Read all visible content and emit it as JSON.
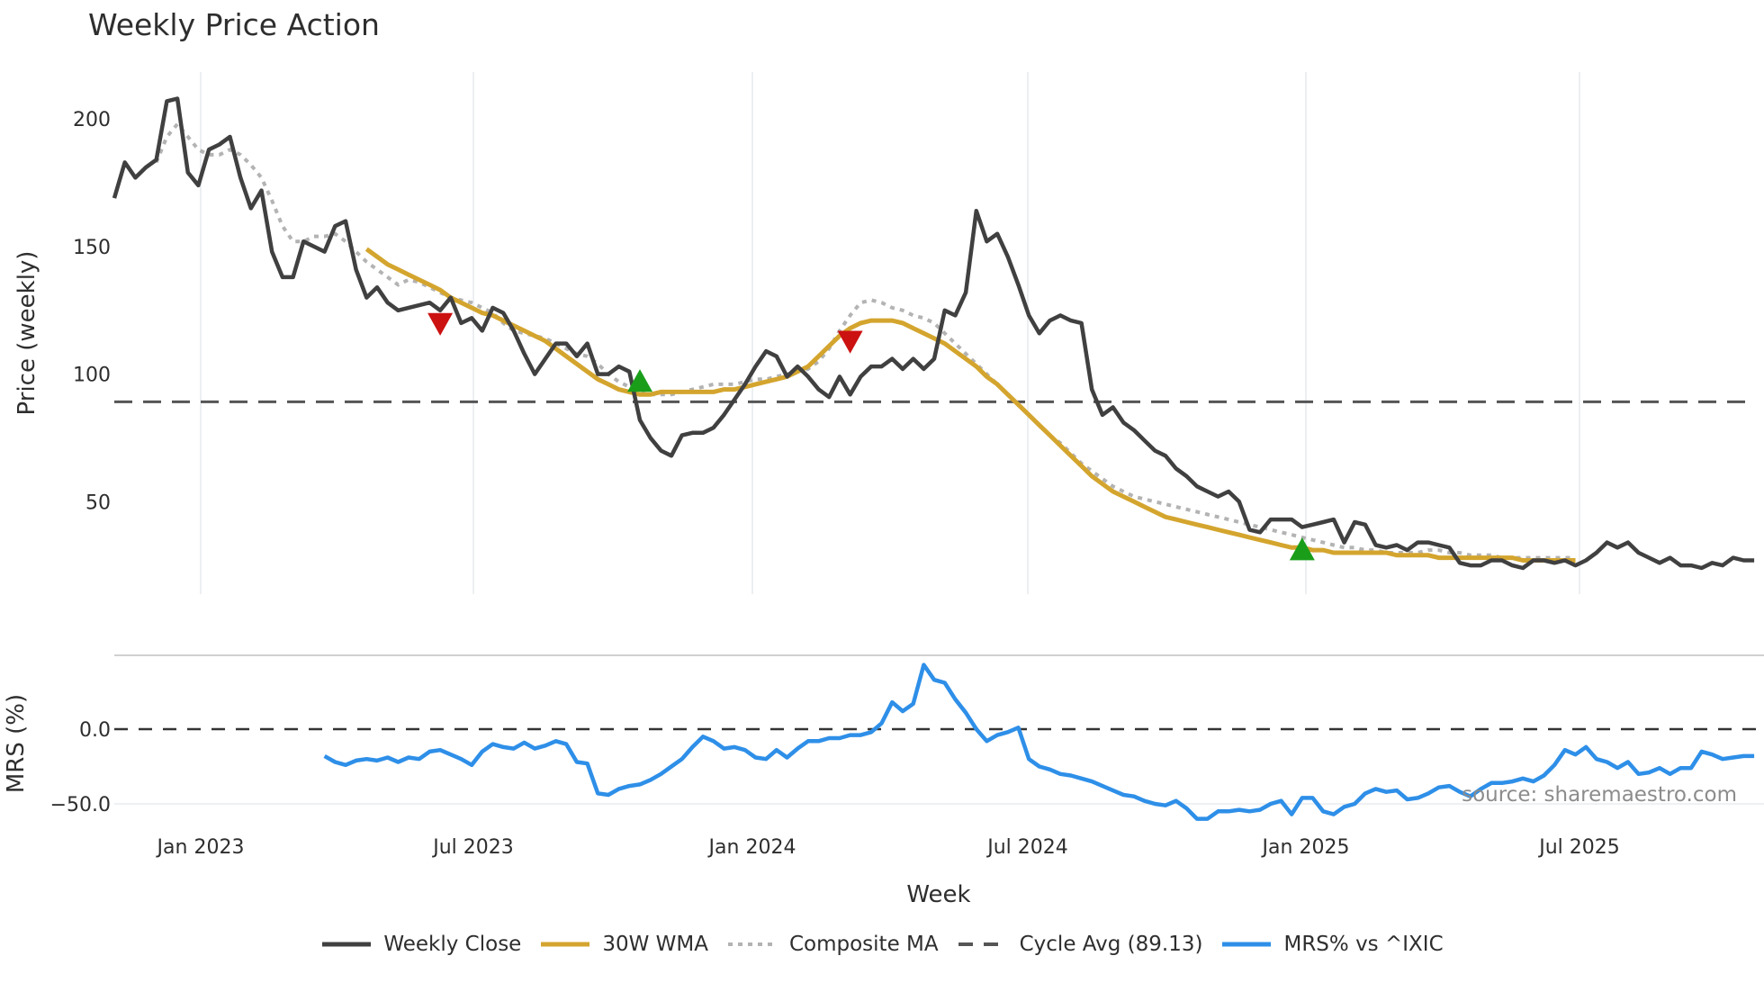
{
  "title": "Weekly Price Action",
  "source": "source: sharemaestro.com",
  "chart_data": [
    {
      "type": "line",
      "title": "Weekly Price Action",
      "xlabel": "Week",
      "ylabel": "Price (weekly)",
      "yticks": [
        50,
        100,
        150,
        200
      ],
      "ylim": [
        15,
        220
      ],
      "x_ticks": [
        "Jan 2023",
        "Jul 2023",
        "Jan 2024",
        "Jul 2024",
        "Jan 2025",
        "Jul 2025"
      ],
      "grid": true,
      "reference_line": {
        "name": "Cycle Avg (89.13)",
        "value": 89.13
      },
      "series": [
        {
          "name": "Weekly Close",
          "color": "#404040",
          "start_week": 0,
          "values": [
            169,
            183,
            177,
            181,
            184,
            207,
            208,
            179,
            174,
            188,
            190,
            193,
            177,
            165,
            172,
            148,
            138,
            138,
            152,
            150,
            148,
            158,
            160,
            141,
            130,
            134,
            128,
            125,
            126,
            127,
            128,
            125,
            130,
            120,
            122,
            117,
            126,
            124,
            117,
            108,
            100,
            106,
            112,
            112,
            107,
            112,
            100,
            100,
            103,
            101,
            82,
            75,
            70,
            68,
            76,
            77,
            77,
            79,
            84,
            90,
            96,
            103,
            109,
            107,
            99,
            103,
            99,
            94,
            91,
            99,
            92,
            99,
            103,
            103,
            106,
            102,
            106,
            102,
            106,
            125,
            123,
            132,
            164,
            152,
            155,
            146,
            135,
            123,
            116,
            121,
            123,
            121,
            120,
            94,
            84,
            87,
            81,
            78,
            74,
            70,
            68,
            63,
            60,
            56,
            54,
            52,
            54,
            50,
            39,
            38,
            43,
            43,
            43,
            40,
            41,
            42,
            43,
            34,
            42,
            41,
            33,
            32,
            33,
            31,
            34,
            34,
            33,
            32,
            26,
            25,
            25,
            27,
            27,
            25,
            24,
            27,
            27,
            26,
            27,
            25,
            27,
            30,
            34,
            32,
            34,
            30,
            28,
            26,
            28,
            25,
            25,
            24,
            26,
            25,
            28,
            27,
            27
          ]
        },
        {
          "name": "30W WMA",
          "color": "#d4a52e",
          "start_week": 24,
          "values": [
            149,
            146,
            143,
            141,
            139,
            137,
            135,
            133,
            130,
            128,
            126,
            124,
            123,
            121,
            119,
            117,
            115,
            113,
            110,
            107,
            104,
            101,
            98,
            96,
            94,
            93,
            92,
            92,
            93,
            93,
            93,
            93,
            93,
            93,
            94,
            94,
            95,
            96,
            97,
            98,
            99,
            101,
            103,
            107,
            111,
            115,
            118,
            120,
            121,
            121,
            121,
            120,
            118,
            116,
            114,
            112,
            109,
            106,
            103,
            99,
            96,
            92,
            88,
            84,
            80,
            76,
            72,
            68,
            64,
            60,
            57,
            54,
            52,
            50,
            48,
            46,
            44,
            43,
            42,
            41,
            40,
            39,
            38,
            37,
            36,
            35,
            34,
            33,
            32,
            32,
            31,
            31,
            30,
            30,
            30,
            30,
            30,
            30,
            29,
            29,
            29,
            29,
            28,
            28,
            28,
            28,
            28,
            28,
            28,
            28,
            27,
            27,
            27,
            27,
            27,
            27
          ]
        },
        {
          "name": "Composite MA",
          "color": "#b3b3b3",
          "dash": "dotted",
          "start_week": 4,
          "values": [
            183,
            193,
            198,
            193,
            188,
            186,
            186,
            188,
            186,
            182,
            177,
            168,
            158,
            152,
            152,
            154,
            154,
            155,
            152,
            148,
            144,
            141,
            138,
            135,
            137,
            136,
            134,
            132,
            130,
            129,
            128,
            126,
            124,
            120,
            117,
            116,
            115,
            114,
            112,
            110,
            108,
            107,
            104,
            100,
            97,
            95,
            93,
            92,
            92,
            92,
            93,
            94,
            95,
            96,
            96,
            96,
            97,
            98,
            98,
            99,
            100,
            101,
            102,
            105,
            110,
            117,
            123,
            128,
            129,
            128,
            126,
            125,
            123,
            122,
            120,
            116,
            112,
            108,
            104,
            100,
            96,
            92,
            88,
            84,
            80,
            76,
            73,
            69,
            65,
            62,
            59,
            56,
            54,
            52,
            51,
            50,
            49,
            48,
            47,
            46,
            45,
            44,
            43,
            42,
            41,
            40,
            39,
            38,
            37,
            36,
            35,
            34,
            33,
            32,
            32,
            31,
            31,
            30,
            30,
            30,
            30,
            31,
            31,
            30,
            30,
            29,
            29,
            29,
            28,
            28,
            28,
            28,
            28,
            28,
            28,
            28
          ]
        },
        {
          "name": "MRS% vs ^IXIC",
          "color": "#2e8fe8",
          "panel": "lower",
          "start_week": 20,
          "values": [
            -18,
            -22,
            -24,
            -21,
            -20,
            -21,
            -19,
            -22,
            -19,
            -20,
            -15,
            -14,
            -17,
            -20,
            -24,
            -15,
            -10,
            -12,
            -13,
            -9,
            -13,
            -11,
            -8,
            -10,
            -22,
            -23,
            -43,
            -44,
            -40,
            -38,
            -37,
            -34,
            -30,
            -25,
            -20,
            -12,
            -5,
            -8,
            -13,
            -12,
            -14,
            -19,
            -20,
            -14,
            -19,
            -13,
            -8,
            -8,
            -6,
            -6,
            -4,
            -4,
            -2,
            4,
            18,
            12,
            17,
            43,
            33,
            31,
            20,
            11,
            0,
            -8,
            -4,
            -2,
            1,
            -20,
            -25,
            -27,
            -30,
            -31,
            -33,
            -35,
            -38,
            -41,
            -44,
            -45,
            -48,
            -50,
            -51,
            -48,
            -53,
            -60,
            -60,
            -55,
            -55,
            -54,
            -55,
            -54,
            -50,
            -48,
            -57,
            -46,
            -46,
            -55,
            -57,
            -52,
            -50,
            -43,
            -40,
            -42,
            -41,
            -47,
            -46,
            -43,
            -39,
            -38,
            -42,
            -45,
            -40,
            -36,
            -36,
            -35,
            -33,
            -35,
            -31,
            -24,
            -14,
            -17,
            -12,
            -20,
            -22,
            -26,
            -22,
            -30,
            -29,
            -26,
            -30,
            -26,
            -26,
            -15,
            -17,
            -20,
            -19,
            -18,
            -18
          ]
        }
      ],
      "markers": [
        {
          "type": "sell",
          "shape": "triangle-down",
          "color": "#cc1111",
          "week": 31,
          "value": 120
        },
        {
          "type": "buy",
          "shape": "triangle-up",
          "color": "#1a9e1a",
          "week": 50,
          "value": 97
        },
        {
          "type": "sell",
          "shape": "triangle-down",
          "color": "#cc1111",
          "week": 70,
          "value": 113
        },
        {
          "type": "buy",
          "shape": "triangle-up",
          "color": "#1a9e1a",
          "week": 113,
          "value": 31
        }
      ]
    },
    {
      "type": "line",
      "ylabel": "MRS (%)",
      "yticks": [
        "−50.0",
        "0.0"
      ],
      "ytick_values": [
        -50,
        0
      ],
      "reference_line": {
        "value": 0
      }
    }
  ],
  "legend": [
    {
      "label": "Weekly Close",
      "style": "solid",
      "color": "#404040"
    },
    {
      "label": "30W WMA",
      "style": "solid",
      "color": "#d4a52e"
    },
    {
      "label": "Composite MA",
      "style": "dotted",
      "color": "#b3b3b3"
    },
    {
      "label": "Cycle Avg (89.13)",
      "style": "dashed",
      "color": "#555555"
    },
    {
      "label": "MRS% vs ^IXIC",
      "style": "solid",
      "color": "#2e8fe8"
    }
  ]
}
